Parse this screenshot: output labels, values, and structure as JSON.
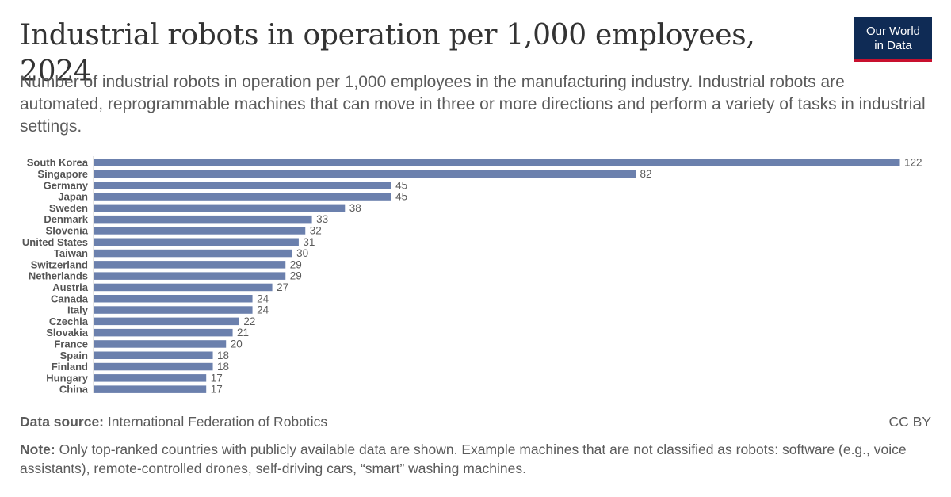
{
  "header": {
    "title": "Industrial robots in operation per 1,000 employees, 2024",
    "subtitle": "Number of industrial robots in operation per 1,000 employees in the manufacturing industry. Industrial robots are automated, reprogrammable machines that can move in three or more directions and perform a variety of tasks in industrial settings."
  },
  "logo": {
    "line1": "Our World",
    "line2": "in Data"
  },
  "colors": {
    "bar": "#6b80ad",
    "logo_bg": "#0f2b55",
    "logo_accent": "#c8102e"
  },
  "chart_data": {
    "type": "bar",
    "orientation": "horizontal",
    "title": "Industrial robots in operation per 1,000 employees, 2024",
    "categories": [
      "South Korea",
      "Singapore",
      "Germany",
      "Japan",
      "Sweden",
      "Denmark",
      "Slovenia",
      "United States",
      "Taiwan",
      "Switzerland",
      "Netherlands",
      "Austria",
      "Canada",
      "Italy",
      "Czechia",
      "Slovakia",
      "France",
      "Spain",
      "Finland",
      "Hungary",
      "China"
    ],
    "values": [
      122,
      82,
      45,
      45,
      38,
      33,
      32,
      31,
      30,
      29,
      29,
      27,
      24,
      24,
      22,
      21,
      20,
      18,
      18,
      17,
      17
    ],
    "xlim": [
      0,
      122
    ],
    "grid": false,
    "legend": "none"
  },
  "footer": {
    "source_label": "Data source:",
    "source_text": "International Federation of Robotics",
    "license": "CC BY",
    "note_label": "Note:",
    "note_text": "Only top-ranked countries with publicly available data are shown. Example machines that are not classified as robots: software (e.g., voice assistants), remote-controlled drones, self-driving cars, “smart” washing machines."
  }
}
